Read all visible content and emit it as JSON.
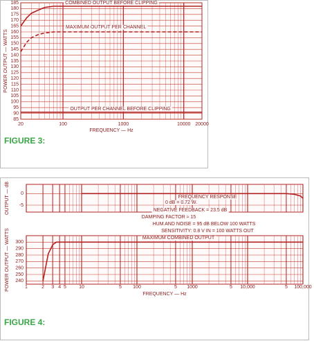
{
  "chart_data": [
    {
      "type": "line",
      "caption": "FIGURE 3:",
      "xlabel": "FREQUENCY — Hz",
      "ylabel": "POWER OUTPUT — WATTS",
      "xscale": "log",
      "xlim": [
        20,
        20000
      ],
      "xticks": [
        20,
        100,
        1000,
        10000,
        20000
      ],
      "ylim": [
        85,
        185
      ],
      "yticks": [
        85,
        90,
        95,
        100,
        105,
        110,
        115,
        120,
        125,
        130,
        135,
        140,
        145,
        150,
        155,
        160,
        165,
        170,
        175,
        180,
        185
      ],
      "grid": true,
      "color": "#b22222",
      "series": [
        {
          "name": "COMBINED OUTPUT BEFORE CLIPPING",
          "color": "#b22222",
          "x": [
            20,
            25,
            30,
            40,
            50,
            70,
            100,
            1000,
            10000,
            20000
          ],
          "values": [
            165,
            172,
            176,
            179,
            181,
            182,
            182,
            182,
            182,
            182
          ]
        },
        {
          "name": "MAXIMUM OUTPUT PER CHANNEL",
          "color": "#b22222",
          "dash": true,
          "x": [
            20,
            25,
            30,
            40,
            50,
            70,
            100,
            1000,
            10000,
            20000
          ],
          "values": [
            143,
            151,
            155,
            158,
            159,
            160,
            160,
            160,
            160,
            160
          ]
        },
        {
          "name": "OUTPUT PER CHANNEL BEFORE CLIPPING",
          "color": "#b22222",
          "x": [
            20,
            100,
            1000,
            10000,
            20000
          ],
          "values": [
            91,
            91,
            91,
            91,
            91
          ]
        }
      ]
    },
    {
      "type": "line",
      "caption": "FIGURE 4:",
      "xlabel": "FREQUENCY — Hz",
      "ylabel": "POWER OUTPUT — WATTS",
      "y2label": "OUTPUT — dB",
      "xscale": "log",
      "xlim": [
        1,
        100000
      ],
      "xticks": [
        1,
        2,
        3,
        4,
        5,
        10,
        {
          "value": 50,
          "label": "5"
        },
        100,
        {
          "value": 500,
          "label": "5"
        },
        1000,
        {
          "value": 5000,
          "label": "5"
        },
        {
          "value": 10000,
          "label": "10,000"
        },
        {
          "value": 50000,
          "label": "5"
        },
        {
          "value": 100000,
          "label": "100,000"
        }
      ],
      "ylim": [
        235,
        310
      ],
      "yticks": [
        240,
        250,
        260,
        270,
        280,
        290,
        300
      ],
      "y2lim": [
        -8,
        4
      ],
      "y2ticks": [
        0,
        -5
      ],
      "grid": true,
      "color": "#b22222",
      "annotations": [
        "FREQUENCY RESPONSE",
        "0 dB = 0.72 W.",
        "NEGATIVE FEEDBACK = 23.5 dB",
        "DAMPING FACTOR ≈ 15",
        "HUM AND NOISE = 95 dB BELOW 100 WATTS",
        "SENSITIVITY:  0.8 V IN = 100 WATTS OUT"
      ],
      "series": [
        {
          "name": "FREQUENCY RESPONSE LINE",
          "axis": "y2",
          "color": "#b22222",
          "x": [
            10,
            100,
            1000,
            10000,
            50000,
            70000,
            90000,
            100000
          ],
          "values": [
            0,
            0,
            0,
            0,
            0,
            -0.3,
            -1,
            -2
          ]
        },
        {
          "name": "MAXIMUM COMBINED OUTPUT",
          "color": "#b22222",
          "x": [
            2,
            2.5,
            3,
            3.5,
            5,
            100,
            1000,
            10000,
            100000
          ],
          "values": [
            240,
            282,
            296,
            300,
            300,
            300,
            300,
            300,
            300
          ]
        }
      ]
    }
  ]
}
